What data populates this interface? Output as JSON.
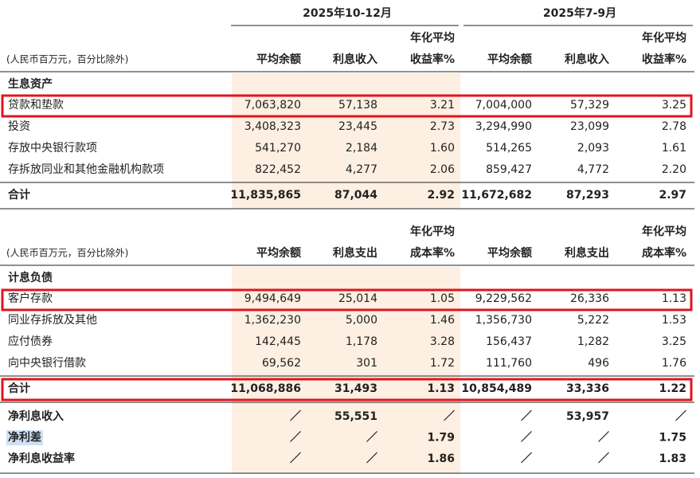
{
  "periods": [
    "2025年10-12月",
    "2025年7-9月"
  ],
  "assets": {
    "note": "(人民币百万元，百分比除外)",
    "columns": [
      [
        "平均余额"
      ],
      [
        "利息收入"
      ],
      [
        "年化平均",
        "收益率%"
      ],
      [
        "平均余额"
      ],
      [
        "利息收入"
      ],
      [
        "年化平均",
        "收益率%"
      ]
    ],
    "section": "生息资产",
    "rows": [
      {
        "label": "贷款和垫款",
        "values": [
          "7,063,820",
          "57,138",
          "3.21",
          "7,004,000",
          "57,329",
          "3.25"
        ]
      },
      {
        "label": "投资",
        "values": [
          "3,408,323",
          "23,445",
          "2.73",
          "3,294,990",
          "23,099",
          "2.78"
        ]
      },
      {
        "label": "存放中央银行款项",
        "values": [
          "541,270",
          "2,184",
          "1.60",
          "514,265",
          "2,093",
          "1.61"
        ]
      },
      {
        "label": "存拆放同业和其他金融机构款项",
        "values": [
          "822,452",
          "4,277",
          "2.06",
          "859,427",
          "4,772",
          "2.20"
        ]
      }
    ],
    "total": {
      "label": "合计",
      "values": [
        "11,835,865",
        "87,044",
        "2.92",
        "11,672,682",
        "87,293",
        "2.97"
      ]
    }
  },
  "liabilities": {
    "note": "(人民币百万元，百分比除外)",
    "columns": [
      [
        "平均余额"
      ],
      [
        "利息支出"
      ],
      [
        "年化平均",
        "成本率%"
      ],
      [
        "平均余额"
      ],
      [
        "利息支出"
      ],
      [
        "年化平均",
        "成本率%"
      ]
    ],
    "section": "计息负债",
    "rows": [
      {
        "label": "客户存款",
        "values": [
          "9,494,649",
          "25,014",
          "1.05",
          "9,229,562",
          "26,336",
          "1.13"
        ]
      },
      {
        "label": "同业存拆放及其他",
        "values": [
          "1,362,230",
          "5,000",
          "1.46",
          "1,356,730",
          "5,222",
          "1.53"
        ]
      },
      {
        "label": "应付债券",
        "values": [
          "142,445",
          "1,178",
          "3.28",
          "156,437",
          "1,282",
          "3.25"
        ]
      },
      {
        "label": "向中央银行借款",
        "values": [
          "69,562",
          "301",
          "1.72",
          "111,760",
          "496",
          "1.76"
        ]
      }
    ],
    "total": {
      "label": "合计",
      "values": [
        "11,068,886",
        "31,493",
        "1.13",
        "10,854,489",
        "33,336",
        "1.22"
      ]
    }
  },
  "net": [
    {
      "label": "净利息收入",
      "values": [
        "／",
        "55,551",
        "／",
        "／",
        "53,957",
        "／"
      ]
    },
    {
      "label": "净利差",
      "values": [
        "／",
        "／",
        "1.79",
        "／",
        "／",
        "1.75"
      ]
    },
    {
      "label": "净利息收益率",
      "values": [
        "／",
        "／",
        "1.86",
        "／",
        "／",
        "1.83"
      ]
    }
  ]
}
